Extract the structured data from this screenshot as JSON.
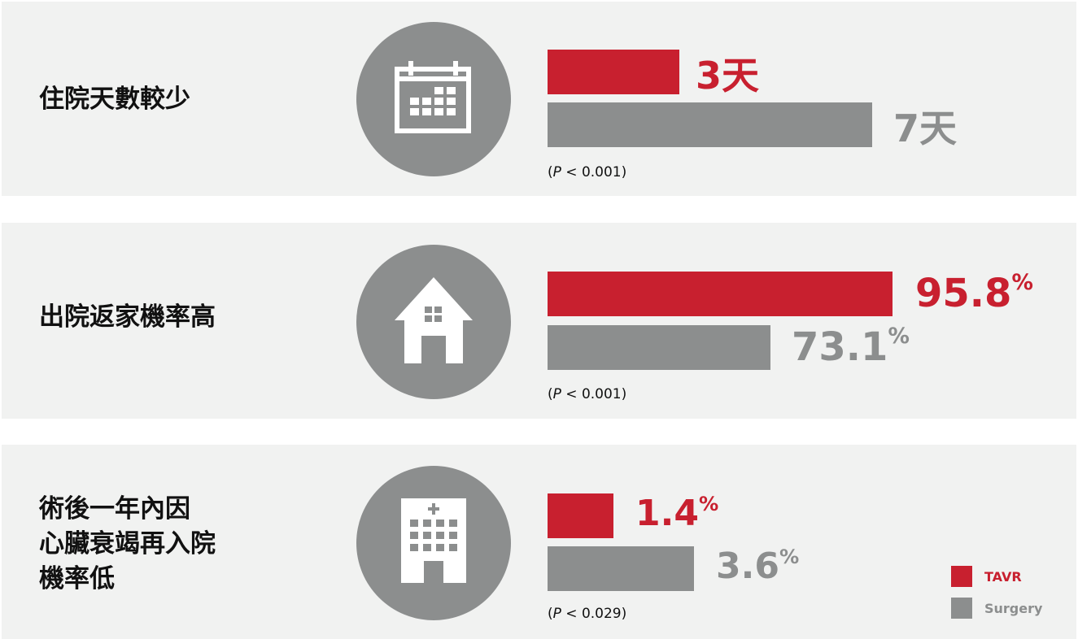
{
  "colors": {
    "tavr": "#c8202f",
    "surgery": "#8c8e8e",
    "panel_bg": "#f1f2f1",
    "icon_bg": "#8c8e8e"
  },
  "chart_data": [
    {
      "type": "bar",
      "label": "住院天數較少",
      "icon": "calendar-icon",
      "series": [
        {
          "name": "TAVR",
          "value": 3,
          "display": "3天"
        },
        {
          "name": "Surgery",
          "value": 7,
          "display": "7天"
        }
      ],
      "p_value_prefix": "(",
      "p_value_var": "P",
      "p_value_rest": " < 0.001)"
    },
    {
      "type": "bar",
      "label": "出院返家機率高",
      "icon": "house-icon",
      "series": [
        {
          "name": "TAVR",
          "value": 95.8,
          "display": "95.8",
          "unit": "%"
        },
        {
          "name": "Surgery",
          "value": 73.1,
          "display": "73.1",
          "unit": "%"
        }
      ],
      "p_value_prefix": "(",
      "p_value_var": "P",
      "p_value_rest": " < 0.001)"
    },
    {
      "type": "bar",
      "label": "術後一年內因\n心臟衰竭再入院\n機率低",
      "icon": "hospital-icon",
      "series": [
        {
          "name": "TAVR",
          "value": 1.4,
          "display": "1.4",
          "unit": "%"
        },
        {
          "name": "Surgery",
          "value": 3.6,
          "display": "3.6",
          "unit": "%"
        }
      ],
      "p_value_prefix": "(",
      "p_value_var": "P",
      "p_value_rest": " < 0.029)"
    }
  ],
  "legend": [
    {
      "name": "TAVR",
      "color": "#c8202f"
    },
    {
      "name": "Surgery",
      "color": "#8c8e8e"
    }
  ]
}
